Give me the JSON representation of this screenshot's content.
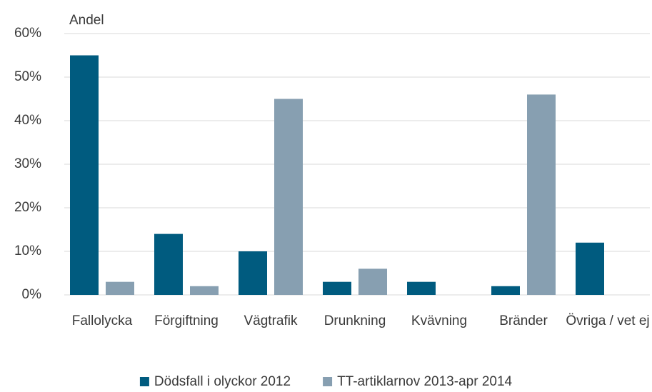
{
  "chart_data": {
    "type": "bar",
    "y_label": "Andel",
    "categories": [
      "Fallolycka",
      "Förgiftning",
      "Vägtrafik",
      "Drunkning",
      "Kvävning",
      "Bränder",
      "Övriga / vet ej"
    ],
    "series": [
      {
        "name": "Dödsfall i olyckor 2012",
        "color": "#005b7f",
        "values": [
          55,
          14,
          10,
          3,
          3,
          2,
          12
        ]
      },
      {
        "name": "TT-artiklarnov 2013-apr 2014",
        "color": "#879fb1",
        "values": [
          3,
          2,
          45,
          6,
          0,
          46,
          0
        ]
      }
    ],
    "ylim": [
      0,
      60
    ],
    "yticks": [
      {
        "value": 0,
        "label": "0%"
      },
      {
        "value": 10,
        "label": "10%"
      },
      {
        "value": 20,
        "label": "20%"
      },
      {
        "value": 30,
        "label": "30%"
      },
      {
        "value": 40,
        "label": "40%"
      },
      {
        "value": 50,
        "label": "50%"
      },
      {
        "value": 60,
        "label": "60%"
      }
    ],
    "grid": true,
    "legend": "bottom"
  }
}
